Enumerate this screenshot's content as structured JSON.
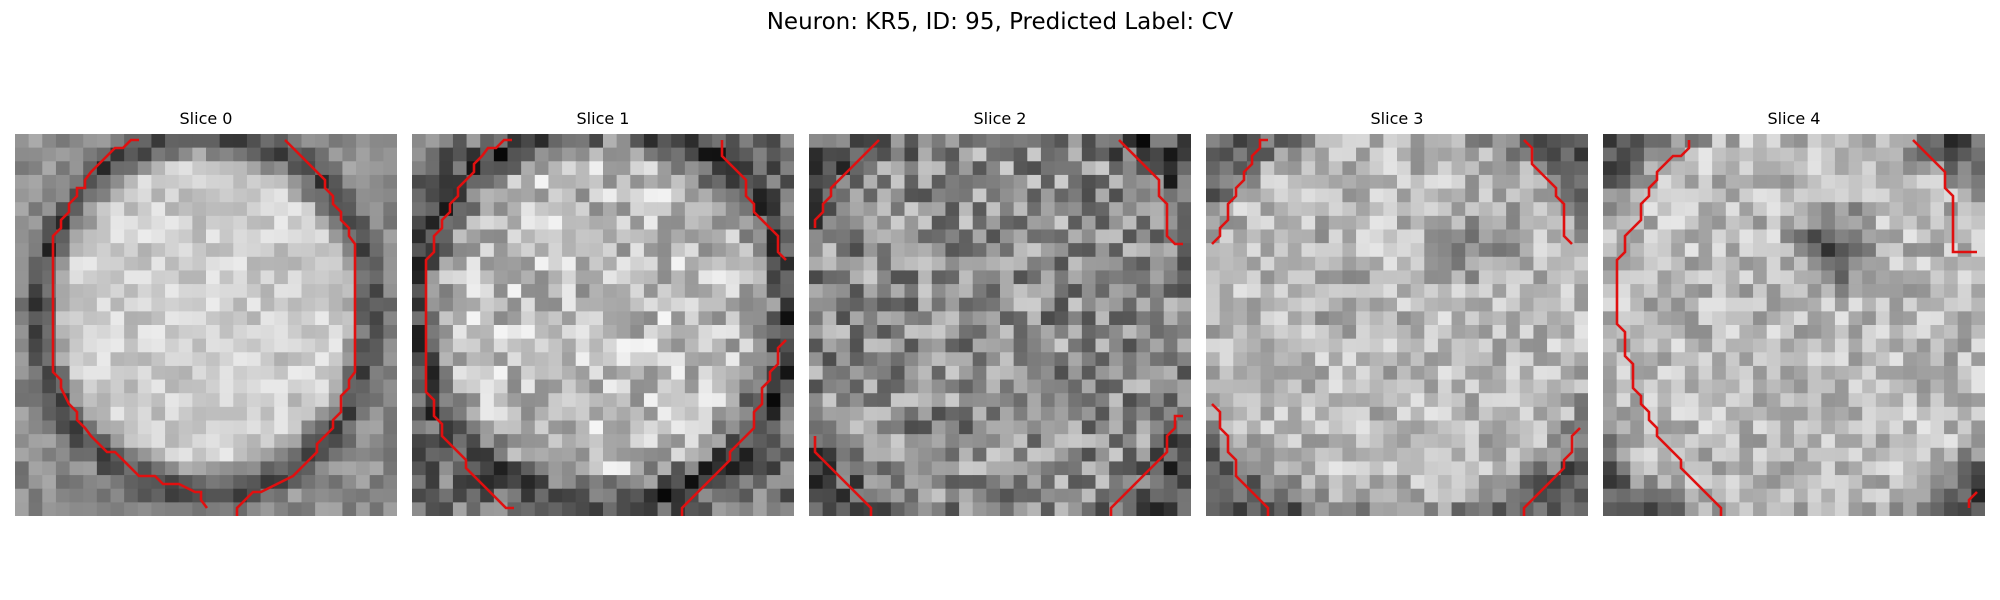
{
  "figure": {
    "title": "Neuron: KR5, ID: 95, Predicted Label: CV"
  },
  "panels": [
    {
      "title": "Slice 0"
    },
    {
      "title": "Slice 1"
    },
    {
      "title": "Slice 2"
    },
    {
      "title": "Slice 3"
    },
    {
      "title": "Slice 4"
    }
  ],
  "colors": {
    "contour": "#e01010",
    "background": "#ffffff",
    "colormap": "grayscale"
  }
}
